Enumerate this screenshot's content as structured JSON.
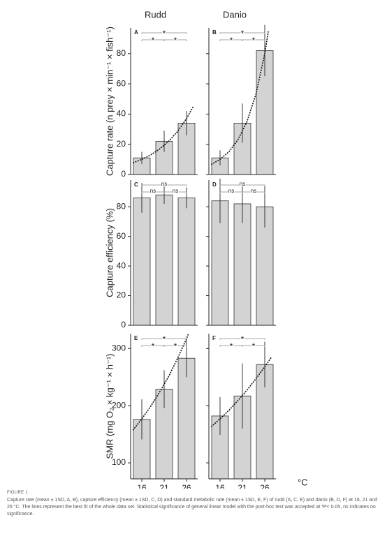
{
  "chart_data": [
    {
      "type": "bar",
      "title": "Rudd",
      "panel": "A",
      "ylabel": "Capture rate (n prey × min⁻¹ × fish⁻¹)",
      "values": [
        11,
        22,
        34
      ],
      "errors": [
        4,
        7,
        8
      ],
      "color": "#d3d3d3",
      "ylim": [
        0,
        97
      ],
      "yticks": [
        0,
        20,
        40,
        60,
        80
      ],
      "ytick_labels": true,
      "annotations": [
        "*",
        "*",
        "*"
      ],
      "fit": {
        "x": [
          14,
          16,
          18,
          20,
          22,
          24,
          26,
          27.5
        ],
        "values": [
          7.7,
          10,
          13,
          16.9,
          22,
          28.5,
          37,
          44.9
        ]
      }
    },
    {
      "type": "bar",
      "title": "Danio",
      "panel": "B",
      "values": [
        11,
        34,
        82
      ],
      "errors": [
        5,
        13,
        17
      ],
      "color": "#d3d3d3",
      "ylim": [
        0,
        97
      ],
      "yticks": [
        0,
        20,
        40,
        60,
        80
      ],
      "ytick_labels": false,
      "annotations": [
        "*",
        "*",
        "*"
      ],
      "fit": {
        "x": [
          14,
          16,
          18,
          20,
          22,
          24,
          26,
          26.8
        ],
        "values": [
          6.6,
          10,
          15.1,
          23,
          34.8,
          52.8,
          80,
          94.7
        ]
      }
    },
    {
      "type": "bar",
      "panel": "C",
      "ylabel": "Capture efficiency (%)",
      "values": [
        86,
        88,
        86
      ],
      "errors": [
        10,
        6,
        7
      ],
      "color": "#d3d3d3",
      "ylim": [
        0,
        98
      ],
      "yticks": [
        0,
        20,
        40,
        60,
        80
      ],
      "ytick_labels": true,
      "annotations": [
        "ns",
        "ns",
        "ns"
      ]
    },
    {
      "type": "bar",
      "panel": "D",
      "values": [
        84,
        82,
        80
      ],
      "errors": [
        15,
        13,
        14
      ],
      "color": "#d3d3d3",
      "ylim": [
        0,
        98
      ],
      "yticks": [
        0,
        20,
        40,
        60,
        80
      ],
      "ytick_labels": false,
      "annotations": [
        "ns",
        "ns",
        "ns"
      ]
    },
    {
      "type": "bar",
      "panel": "E",
      "ylabel": "SMR (mg O₂ × kg⁻¹ × h⁻¹)",
      "categories": [
        "16",
        "21",
        "26"
      ],
      "values": [
        176,
        229,
        283
      ],
      "errors": [
        35,
        33,
        33
      ],
      "color": "#d3d3d3",
      "ylim": [
        72,
        326
      ],
      "yticks": [
        100,
        200,
        300
      ],
      "ytick_labels": true,
      "annotations": [
        "*",
        "*",
        "*"
      ],
      "fit": {
        "x": [
          14,
          16,
          18,
          20,
          22,
          24,
          26,
          26.4
        ],
        "values": [
          157,
          177,
          199,
          224,
          251,
          283,
          317,
          325
        ]
      }
    },
    {
      "type": "bar",
      "panel": "F",
      "categories": [
        "16",
        "21",
        "26"
      ],
      "values": [
        182,
        217,
        272
      ],
      "errors": [
        33,
        57,
        40
      ],
      "color": "#d3d3d3",
      "ylim": [
        72,
        326
      ],
      "yticks": [
        100,
        200,
        300
      ],
      "ytick_labels": false,
      "annotations": [
        "*",
        "*",
        "*"
      ],
      "fit": {
        "x": [
          14,
          16,
          18,
          20,
          22,
          24,
          26,
          27.5
        ],
        "values": [
          163,
          177,
          192,
          209,
          227,
          247,
          268,
          285
        ]
      }
    }
  ],
  "x_unit": "°C",
  "figure_label": "FIGURE 1",
  "caption": "Capture rate (mean ± 1SD, A, B), capture efficiency (mean ± 1SD, C, D) and standard metabolic rate (mean ± 1SD, E, F) of rudd (A, C, E) and danio (B, D, F) at 16, 21 and 26 °C. The lines represent the best fit of the whole data set. Statistical significance of general linear model with the post-hoc test was accepted at *P< 0.05, ns indicates no significance."
}
